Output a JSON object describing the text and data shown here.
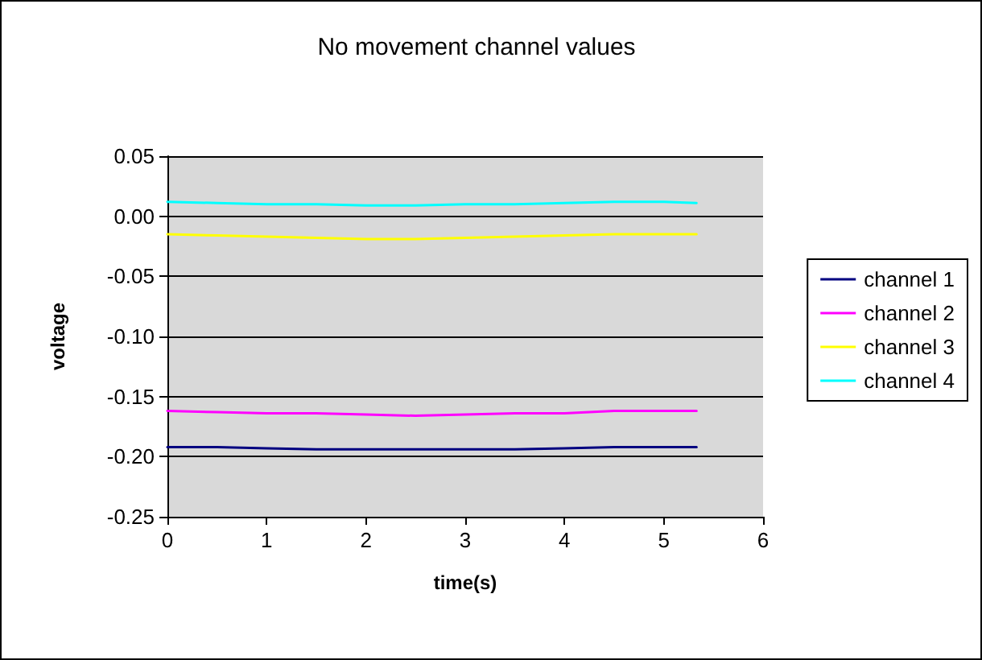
{
  "chart_data": {
    "type": "line",
    "title": "No movement channel values",
    "xlabel": "time(s)",
    "ylabel": "voltage",
    "x": [
      0,
      0.5,
      1,
      1.5,
      2,
      2.5,
      3,
      3.5,
      4,
      4.5,
      5,
      5.33
    ],
    "series": [
      {
        "name": "channel 1",
        "color": "#000080",
        "values": [
          -0.192,
          -0.192,
          -0.193,
          -0.194,
          -0.194,
          -0.194,
          -0.194,
          -0.194,
          -0.193,
          -0.192,
          -0.192,
          -0.192
        ]
      },
      {
        "name": "channel 2",
        "color": "#ff00ff",
        "values": [
          -0.162,
          -0.163,
          -0.164,
          -0.164,
          -0.165,
          -0.166,
          -0.165,
          -0.164,
          -0.164,
          -0.162,
          -0.162,
          -0.162
        ]
      },
      {
        "name": "channel 3",
        "color": "#ffff00",
        "values": [
          -0.015,
          -0.016,
          -0.017,
          -0.018,
          -0.019,
          -0.019,
          -0.018,
          -0.017,
          -0.016,
          -0.015,
          -0.015,
          -0.015
        ]
      },
      {
        "name": "channel 4",
        "color": "#00ffff",
        "values": [
          0.012,
          0.011,
          0.01,
          0.01,
          0.009,
          0.009,
          0.01,
          0.01,
          0.011,
          0.012,
          0.012,
          0.011
        ]
      }
    ],
    "xlim": [
      0,
      6
    ],
    "xticks": [
      0,
      1,
      2,
      3,
      4,
      5,
      6
    ],
    "ylim": [
      -0.25,
      0.05
    ],
    "yticks": [
      {
        "value": -0.25,
        "label": "-0.25"
      },
      {
        "value": -0.2,
        "label": "-0.20"
      },
      {
        "value": -0.15,
        "label": "-0.15"
      },
      {
        "value": -0.1,
        "label": "-0.10"
      },
      {
        "value": -0.05,
        "label": "-0.05"
      },
      {
        "value": 0,
        "label": "0.00"
      },
      {
        "value": 0.05,
        "label": "0.05"
      }
    ],
    "grid": "y",
    "legend": "right",
    "marker": "none",
    "line_style": "solid"
  }
}
